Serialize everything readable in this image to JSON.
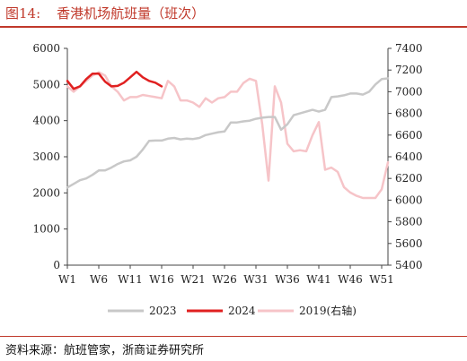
{
  "figure": {
    "label": "图14:",
    "title": "香港机场航班量（班次）",
    "source": "资料来源：航班管家，浙商证券研究所"
  },
  "chart_data": {
    "type": "line",
    "x_ticks": [
      "W1",
      "W6",
      "W11",
      "W16",
      "W21",
      "W26",
      "W31",
      "W36",
      "W41",
      "W46",
      "W51"
    ],
    "y_left": {
      "min": 0,
      "max": 6000,
      "ticks": [
        0,
        1000,
        2000,
        3000,
        4000,
        5000,
        6000
      ]
    },
    "y_right": {
      "min": 5400,
      "max": 7400,
      "ticks": [
        5400,
        5600,
        5800,
        6000,
        6200,
        6400,
        6600,
        6800,
        7000,
        7200,
        7400
      ]
    },
    "series": [
      {
        "name": "2023",
        "axis": "left",
        "color": "#c8c8c8",
        "x": [
          1,
          2,
          3,
          4,
          5,
          6,
          7,
          8,
          9,
          10,
          11,
          12,
          13,
          14,
          15,
          16,
          17,
          18,
          19,
          20,
          21,
          22,
          23,
          24,
          25,
          26,
          27,
          28,
          29,
          30,
          31,
          32,
          33,
          34,
          35,
          36,
          37,
          38,
          39,
          40,
          41,
          42,
          43,
          44,
          45,
          46,
          47,
          48,
          49,
          50,
          51,
          52
        ],
        "values": [
          2150,
          2250,
          2350,
          2400,
          2500,
          2620,
          2620,
          2700,
          2800,
          2870,
          2900,
          3000,
          3200,
          3440,
          3450,
          3450,
          3500,
          3520,
          3480,
          3500,
          3490,
          3520,
          3600,
          3640,
          3680,
          3700,
          3950,
          3950,
          3980,
          4000,
          4050,
          4080,
          4100,
          4100,
          3750,
          3900,
          4150,
          4200,
          4250,
          4300,
          4250,
          4300,
          4650,
          4670,
          4700,
          4750,
          4750,
          4720,
          4800,
          5000,
          5150,
          5170
        ]
      },
      {
        "name": "2024",
        "axis": "left",
        "color": "#e02020",
        "x": [
          1,
          2,
          3,
          4,
          5,
          6,
          7,
          8,
          9,
          10,
          11,
          12,
          13,
          14,
          15,
          16
        ],
        "values": [
          5100,
          4880,
          4950,
          5150,
          5300,
          5300,
          5080,
          4950,
          4960,
          5050,
          5200,
          5350,
          5200,
          5100,
          5050,
          4950
        ]
      },
      {
        "name": "2019(右轴)",
        "axis": "right",
        "color": "#f6c4c8",
        "x": [
          1,
          2,
          3,
          4,
          5,
          6,
          7,
          8,
          9,
          10,
          11,
          12,
          13,
          14,
          15,
          16,
          17,
          18,
          19,
          20,
          21,
          22,
          23,
          24,
          25,
          26,
          27,
          28,
          29,
          30,
          31,
          32,
          33,
          34,
          35,
          36,
          37,
          38,
          39,
          40,
          41,
          42,
          43,
          44,
          45,
          46,
          47,
          48,
          49,
          50,
          51,
          52
        ],
        "values": [
          7050,
          7000,
          7050,
          7100,
          7150,
          7180,
          7150,
          7050,
          7000,
          6920,
          6950,
          6950,
          6970,
          6960,
          6950,
          6940,
          7100,
          7050,
          6920,
          6920,
          6900,
          6860,
          6940,
          6900,
          6940,
          6950,
          7000,
          7000,
          7080,
          7120,
          7100,
          6700,
          6180,
          7050,
          6900,
          6520,
          6450,
          6460,
          6450,
          6600,
          6720,
          6280,
          6300,
          6260,
          6120,
          6070,
          6040,
          6020,
          6020,
          6020,
          6100,
          6350
        ]
      }
    ]
  }
}
